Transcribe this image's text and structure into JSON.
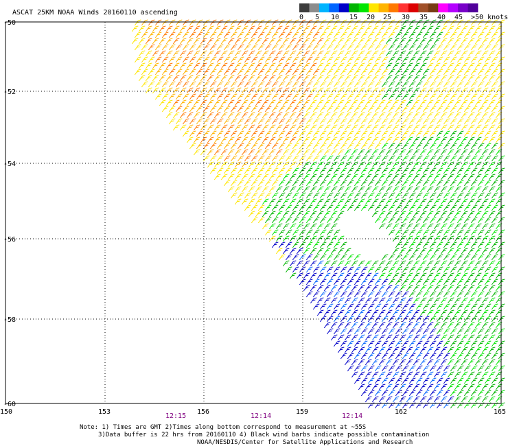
{
  "title": "ASCAT 25KM NOAA Winds 20160110 ascending",
  "legend": {
    "labels": [
      "0",
      "5",
      "10",
      "15",
      "20",
      "25",
      "30",
      "35",
      "40",
      "45",
      ">50 knots"
    ],
    "colors": [
      "#3c3c3c",
      "#8c8c8c",
      "#00b4ff",
      "#0064ff",
      "#0000c8",
      "#00b400",
      "#00e600",
      "#ffe600",
      "#ffb400",
      "#ff7800",
      "#ff3232",
      "#dc0000",
      "#a05028",
      "#783c14",
      "#ff00ff",
      "#b400ff",
      "#7800c8",
      "#50009a"
    ]
  },
  "lat_labels": [
    "-50",
    "-52",
    "-54",
    "-56",
    "-58",
    "-60"
  ],
  "lon_labels": [
    "150",
    "153",
    "156",
    "159",
    "162",
    "165"
  ],
  "times": [
    "12:15",
    "12:14",
    "12:14"
  ],
  "notes": [
    "Note: 1) Times are GMT 2)Times along bottom correspond to measurement at ~55S",
    "3)Data buffer is 22 hrs from 20160110 4) Black wind barbs indicate possible contamination",
    "NOAA/NESDIS/Center for Satellite Applications and Research"
  ]
}
